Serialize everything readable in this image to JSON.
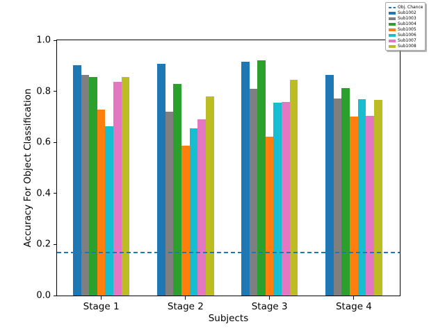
{
  "chart_data": {
    "type": "bar",
    "title": "",
    "xlabel": "Subjects",
    "ylabel": "Accuracy For Object Classification",
    "categories": [
      "Stage 1",
      "Stage 2",
      "Stage 3",
      "Stage 4"
    ],
    "series": [
      {
        "name": "Sub1002",
        "color": "#1f77b4",
        "values": [
          0.902,
          0.908,
          0.916,
          0.865
        ]
      },
      {
        "name": "Sub1003",
        "color": "#7f7f7f",
        "values": [
          0.865,
          0.721,
          0.811,
          0.773
        ]
      },
      {
        "name": "Sub1004",
        "color": "#2ca02c",
        "values": [
          0.857,
          0.83,
          0.922,
          0.813
        ]
      },
      {
        "name": "Sub1005",
        "color": "#ff7f0e",
        "values": [
          0.727,
          0.586,
          0.621,
          0.7
        ]
      },
      {
        "name": "Sub1006",
        "color": "#17becf",
        "values": [
          0.662,
          0.656,
          0.756,
          0.77
        ]
      },
      {
        "name": "Sub1007",
        "color": "#e377c2",
        "values": [
          0.838,
          0.689,
          0.759,
          0.705
        ]
      },
      {
        "name": "Sub1008",
        "color": "#bcbd22",
        "values": [
          0.857,
          0.781,
          0.846,
          0.765
        ]
      }
    ],
    "reference_line": {
      "label": "Obj. Chance",
      "value": 0.168,
      "color": "#1f77b4",
      "style": "dashed"
    },
    "ylim": [
      0.0,
      1.0
    ],
    "yticks": [
      "0.0",
      "0.2",
      "0.4",
      "0.6",
      "0.8",
      "1.0"
    ],
    "grid": false,
    "legend": {
      "position": "upper-right-outside",
      "entries": [
        "Obj. Chance",
        "Sub1002",
        "Sub1003",
        "Sub1004",
        "Sub1005",
        "Sub1006",
        "Sub1007",
        "Sub1008"
      ]
    },
    "layout": {
      "group_center_fracs": [
        0.129,
        0.375,
        0.62,
        0.866
      ],
      "bar_width_frac": 0.0236
    }
  }
}
